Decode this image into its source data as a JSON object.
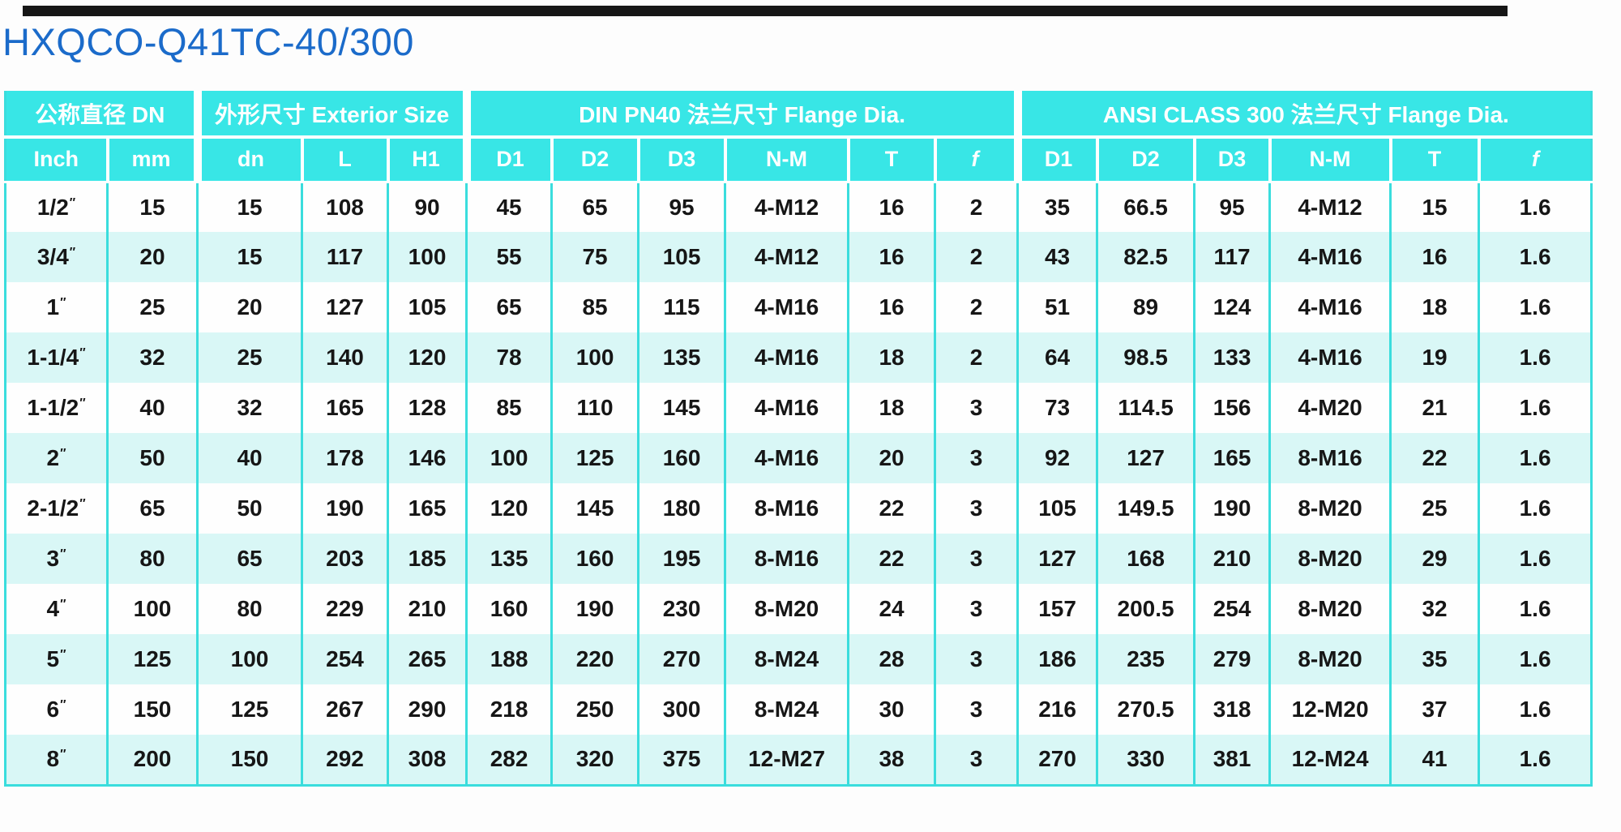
{
  "page": {
    "title": "HXQCO-Q41TC-40/300"
  },
  "colors": {
    "header_bg": "#38e6e6",
    "row_alt_bg": "#d9f7f6",
    "grid_line": "#3adddd",
    "title_blue": "#1b6bca",
    "data_text": "#161616"
  },
  "table": {
    "inch_mark": "″",
    "groups": [
      {
        "label": "公称直径 DN",
        "colspan": 2
      },
      {
        "label": "外形尺寸 Exterior Size",
        "colspan": 3
      },
      {
        "label": "DIN PN40 法兰尺寸 Flange Dia.",
        "colspan": 6
      },
      {
        "label": "ANSI CLASS 300 法兰尺寸 Flange Dia.",
        "colspan": 6
      }
    ],
    "subheaders": [
      "Inch",
      "mm",
      "dn",
      "L",
      "H1",
      "D1",
      "D2",
      "D3",
      "N-M",
      "T",
      "f",
      "D1",
      "D2",
      "D3",
      "N-M",
      "T",
      "f"
    ],
    "rows": [
      {
        "inch": "1/2",
        "cells": [
          "15",
          "15",
          "108",
          "90",
          "45",
          "65",
          "95",
          "4-M12",
          "16",
          "2",
          "35",
          "66.5",
          "95",
          "4-M12",
          "15",
          "1.6"
        ]
      },
      {
        "inch": "3/4",
        "cells": [
          "20",
          "15",
          "117",
          "100",
          "55",
          "75",
          "105",
          "4-M12",
          "16",
          "2",
          "43",
          "82.5",
          "117",
          "4-M16",
          "16",
          "1.6"
        ]
      },
      {
        "inch": "1",
        "cells": [
          "25",
          "20",
          "127",
          "105",
          "65",
          "85",
          "115",
          "4-M16",
          "16",
          "2",
          "51",
          "89",
          "124",
          "4-M16",
          "18",
          "1.6"
        ]
      },
      {
        "inch": "1-1/4",
        "cells": [
          "32",
          "25",
          "140",
          "120",
          "78",
          "100",
          "135",
          "4-M16",
          "18",
          "2",
          "64",
          "98.5",
          "133",
          "4-M16",
          "19",
          "1.6"
        ]
      },
      {
        "inch": "1-1/2",
        "cells": [
          "40",
          "32",
          "165",
          "128",
          "85",
          "110",
          "145",
          "4-M16",
          "18",
          "3",
          "73",
          "114.5",
          "156",
          "4-M20",
          "21",
          "1.6"
        ]
      },
      {
        "inch": "2",
        "cells": [
          "50",
          "40",
          "178",
          "146",
          "100",
          "125",
          "160",
          "4-M16",
          "20",
          "3",
          "92",
          "127",
          "165",
          "8-M16",
          "22",
          "1.6"
        ]
      },
      {
        "inch": "2-1/2",
        "cells": [
          "65",
          "50",
          "190",
          "165",
          "120",
          "145",
          "180",
          "8-M16",
          "22",
          "3",
          "105",
          "149.5",
          "190",
          "8-M20",
          "25",
          "1.6"
        ]
      },
      {
        "inch": "3",
        "cells": [
          "80",
          "65",
          "203",
          "185",
          "135",
          "160",
          "195",
          "8-M16",
          "22",
          "3",
          "127",
          "168",
          "210",
          "8-M20",
          "29",
          "1.6"
        ]
      },
      {
        "inch": "4",
        "cells": [
          "100",
          "80",
          "229",
          "210",
          "160",
          "190",
          "230",
          "8-M20",
          "24",
          "3",
          "157",
          "200.5",
          "254",
          "8-M20",
          "32",
          "1.6"
        ]
      },
      {
        "inch": "5",
        "cells": [
          "125",
          "100",
          "254",
          "265",
          "188",
          "220",
          "270",
          "8-M24",
          "28",
          "3",
          "186",
          "235",
          "279",
          "8-M20",
          "35",
          "1.6"
        ]
      },
      {
        "inch": "6",
        "cells": [
          "150",
          "125",
          "267",
          "290",
          "218",
          "250",
          "300",
          "8-M24",
          "30",
          "3",
          "216",
          "270.5",
          "318",
          "12-M20",
          "37",
          "1.6"
        ]
      },
      {
        "inch": "8",
        "cells": [
          "200",
          "150",
          "292",
          "308",
          "282",
          "320",
          "375",
          "12-M27",
          "38",
          "3",
          "270",
          "330",
          "381",
          "12-M24",
          "41",
          "1.6"
        ]
      }
    ]
  }
}
